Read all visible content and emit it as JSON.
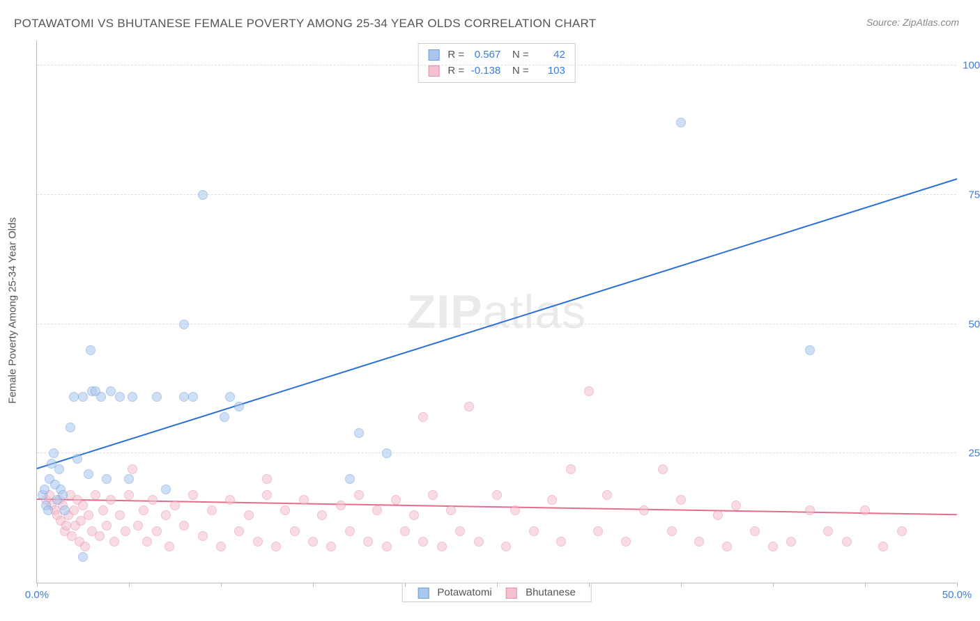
{
  "title": "POTAWATOMI VS BHUTANESE FEMALE POVERTY AMONG 25-34 YEAR OLDS CORRELATION CHART",
  "source": "Source: ZipAtlas.com",
  "y_axis_title": "Female Poverty Among 25-34 Year Olds",
  "watermark": {
    "zip": "ZIP",
    "atlas": "atlas"
  },
  "chart": {
    "type": "scatter",
    "background_color": "#ffffff",
    "grid_color": "#e0e0e0",
    "axis_color": "#bbbbbb",
    "tick_label_color": "#3b7dd8",
    "tick_label_fontsize": 15,
    "xlim": [
      0,
      50
    ],
    "ylim": [
      0,
      105
    ],
    "x_ticks": [
      0,
      5,
      10,
      15,
      20,
      25,
      30,
      35,
      40,
      45,
      50
    ],
    "x_tick_labels": {
      "0": "0.0%",
      "50": "50.0%"
    },
    "y_ticks": [
      25,
      50,
      75,
      100
    ],
    "y_tick_labels": {
      "25": "25.0%",
      "50": "50.0%",
      "75": "75.0%",
      "100": "100.0%"
    },
    "marker_radius": 7,
    "marker_opacity": 0.55,
    "series": [
      {
        "name": "Potawatomi",
        "color_fill": "#a9c6ee",
        "color_stroke": "#6b9ddb",
        "r_label": "R =",
        "r_value": "0.567",
        "n_label": "N =",
        "n_value": "42",
        "trend": {
          "x1": 0,
          "y1": 22,
          "x2": 50,
          "y2": 78,
          "color": "#2b6fd6",
          "width": 2
        },
        "points": [
          [
            0.3,
            17
          ],
          [
            0.4,
            18
          ],
          [
            0.5,
            15
          ],
          [
            0.6,
            14
          ],
          [
            0.7,
            20
          ],
          [
            0.8,
            23
          ],
          [
            0.9,
            25
          ],
          [
            1.0,
            19
          ],
          [
            1.1,
            16
          ],
          [
            1.2,
            22
          ],
          [
            1.3,
            18
          ],
          [
            1.4,
            17
          ],
          [
            1.5,
            14
          ],
          [
            1.8,
            30
          ],
          [
            2.0,
            36
          ],
          [
            2.2,
            24
          ],
          [
            2.5,
            36
          ],
          [
            2.8,
            21
          ],
          [
            2.9,
            45
          ],
          [
            3.0,
            37
          ],
          [
            3.2,
            37
          ],
          [
            3.5,
            36
          ],
          [
            3.8,
            20
          ],
          [
            4.0,
            37
          ],
          [
            4.5,
            36
          ],
          [
            5.0,
            20
          ],
          [
            5.2,
            36
          ],
          [
            6.5,
            36
          ],
          [
            7.0,
            18
          ],
          [
            8.0,
            50
          ],
          [
            8.0,
            36
          ],
          [
            8.5,
            36
          ],
          [
            9.0,
            75
          ],
          [
            10.2,
            32
          ],
          [
            10.5,
            36
          ],
          [
            11,
            34
          ],
          [
            17,
            20
          ],
          [
            17.5,
            29
          ],
          [
            19,
            25
          ],
          [
            35,
            89
          ],
          [
            2.5,
            5
          ],
          [
            42,
            45
          ]
        ]
      },
      {
        "name": "Bhutanese",
        "color_fill": "#f4c1cf",
        "color_stroke": "#e88fa7",
        "r_label": "R =",
        "r_value": "-0.138",
        "n_label": "N =",
        "n_value": "103",
        "trend": {
          "x1": 0,
          "y1": 16,
          "x2": 50,
          "y2": 13,
          "color": "#e56d8c",
          "width": 2
        },
        "points": [
          [
            0.5,
            16
          ],
          [
            0.7,
            17
          ],
          [
            0.8,
            15
          ],
          [
            1.0,
            14
          ],
          [
            1.1,
            13
          ],
          [
            1.2,
            16
          ],
          [
            1.3,
            12
          ],
          [
            1.4,
            15
          ],
          [
            1.5,
            10
          ],
          [
            1.6,
            11
          ],
          [
            1.7,
            13
          ],
          [
            1.8,
            17
          ],
          [
            1.9,
            9
          ],
          [
            2.0,
            14
          ],
          [
            2.1,
            11
          ],
          [
            2.2,
            16
          ],
          [
            2.3,
            8
          ],
          [
            2.4,
            12
          ],
          [
            2.5,
            15
          ],
          [
            2.6,
            7
          ],
          [
            2.8,
            13
          ],
          [
            3.0,
            10
          ],
          [
            3.2,
            17
          ],
          [
            3.4,
            9
          ],
          [
            3.6,
            14
          ],
          [
            3.8,
            11
          ],
          [
            4.0,
            16
          ],
          [
            4.2,
            8
          ],
          [
            4.5,
            13
          ],
          [
            4.8,
            10
          ],
          [
            5.0,
            17
          ],
          [
            5.2,
            22
          ],
          [
            5.5,
            11
          ],
          [
            5.8,
            14
          ],
          [
            6.0,
            8
          ],
          [
            6.3,
            16
          ],
          [
            6.5,
            10
          ],
          [
            7.0,
            13
          ],
          [
            7.2,
            7
          ],
          [
            7.5,
            15
          ],
          [
            8.0,
            11
          ],
          [
            8.5,
            17
          ],
          [
            9.0,
            9
          ],
          [
            9.5,
            14
          ],
          [
            10,
            7
          ],
          [
            10.5,
            16
          ],
          [
            11,
            10
          ],
          [
            11.5,
            13
          ],
          [
            12,
            8
          ],
          [
            12.5,
            17
          ],
          [
            13,
            7
          ],
          [
            13.5,
            14
          ],
          [
            14,
            10
          ],
          [
            14.5,
            16
          ],
          [
            15,
            8
          ],
          [
            15.5,
            13
          ],
          [
            16,
            7
          ],
          [
            16.5,
            15
          ],
          [
            17,
            10
          ],
          [
            17.5,
            17
          ],
          [
            18,
            8
          ],
          [
            18.5,
            14
          ],
          [
            19,
            7
          ],
          [
            19.5,
            16
          ],
          [
            20,
            10
          ],
          [
            20.5,
            13
          ],
          [
            21,
            8
          ],
          [
            21.5,
            17
          ],
          [
            22,
            7
          ],
          [
            22.5,
            14
          ],
          [
            23,
            10
          ],
          [
            23.5,
            34
          ],
          [
            24,
            8
          ],
          [
            25,
            17
          ],
          [
            25.5,
            7
          ],
          [
            26,
            14
          ],
          [
            27,
            10
          ],
          [
            28,
            16
          ],
          [
            28.5,
            8
          ],
          [
            29,
            22
          ],
          [
            30,
            37
          ],
          [
            30.5,
            10
          ],
          [
            31,
            17
          ],
          [
            32,
            8
          ],
          [
            33,
            14
          ],
          [
            34,
            22
          ],
          [
            34.5,
            10
          ],
          [
            35,
            16
          ],
          [
            36,
            8
          ],
          [
            37,
            13
          ],
          [
            37.5,
            7
          ],
          [
            38,
            15
          ],
          [
            39,
            10
          ],
          [
            40,
            7
          ],
          [
            41,
            8
          ],
          [
            42,
            14
          ],
          [
            43,
            10
          ],
          [
            44,
            8
          ],
          [
            45,
            14
          ],
          [
            46,
            7
          ],
          [
            47,
            10
          ],
          [
            12.5,
            20
          ],
          [
            21,
            32
          ]
        ]
      }
    ]
  },
  "legend": {
    "items": [
      {
        "label": "Potawatomi",
        "fill": "#a9c6ee",
        "stroke": "#6b9ddb"
      },
      {
        "label": "Bhutanese",
        "fill": "#f4c1cf",
        "stroke": "#e88fa7"
      }
    ]
  }
}
